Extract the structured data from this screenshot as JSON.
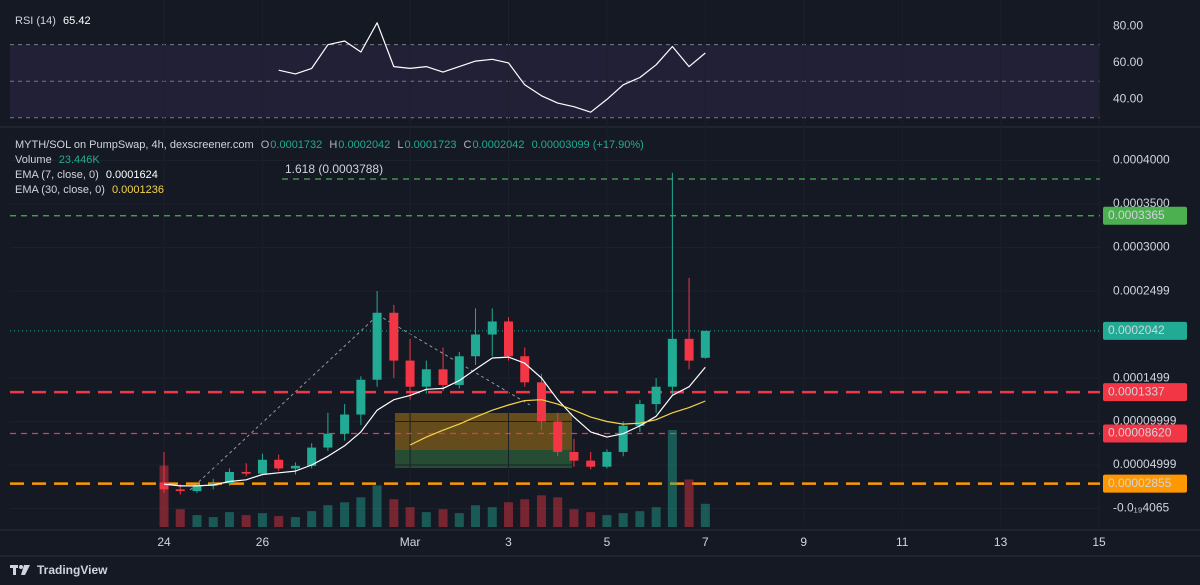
{
  "chart_data": {
    "type": "candlestick",
    "legend": {
      "title": "MYTH/SOL on PumpSwap, 4h, dexscreener.com",
      "keys": [
        "O",
        "H",
        "L",
        "C"
      ],
      "change": "0.00003099 (+17.90%)"
    },
    "footer": "TradingView",
    "xlim": [
      -3.13,
      19.02
    ],
    "xticks": [
      {
        "value": 0,
        "label": "24"
      },
      {
        "value": 2,
        "label": "26"
      },
      {
        "value": 5,
        "label": "Mar"
      },
      {
        "value": 7,
        "label": "3"
      },
      {
        "value": 9,
        "label": "5"
      },
      {
        "value": 11,
        "label": "7"
      },
      {
        "value": 13,
        "label": "9"
      },
      {
        "value": 15,
        "label": "11"
      },
      {
        "value": 17,
        "label": "13"
      },
      {
        "value": 19,
        "label": "15"
      }
    ],
    "ylim": [
      -2.13e-05,
      0.0004374
    ],
    "yticks": [
      {
        "value": 0.0004,
        "label": "0.0004000"
      },
      {
        "value": 0.00035,
        "label": "0.0003500"
      },
      {
        "value": 0.0003,
        "label": "0.0003000"
      },
      {
        "value": 0.0002499,
        "label": "0.0002499"
      },
      {
        "value": 0.0001499,
        "label": "0.0001499"
      },
      {
        "value": 9.999e-05,
        "label": "0.00009999"
      },
      {
        "value": 4.999e-05,
        "label": "0.00004999"
      },
      {
        "value": -4.065e-20,
        "label": "-0.0₁₉4065"
      }
    ],
    "up_color": "#22ab94",
    "down_color": "#f23645",
    "x": [
      0,
      0.33,
      0.67,
      1,
      1.33,
      1.67,
      2,
      2.33,
      2.67,
      3,
      3.33,
      3.67,
      4,
      4.33,
      4.67,
      5,
      5.33,
      5.67,
      6,
      6.33,
      6.67,
      7,
      7.33,
      7.67,
      8,
      8.33,
      8.67,
      9,
      9.33,
      9.67,
      10,
      10.33,
      10.67,
      11
    ],
    "candles": [
      [
        3e-05,
        6.5e-05,
        1.8e-05,
        2.2e-05
      ],
      [
        2.2e-05,
        2.8e-05,
        1.6e-05,
        2e-05
      ],
      [
        2e-05,
        2.9e-05,
        1.8e-05,
        2.6e-05
      ],
      [
        2.6e-05,
        3.4e-05,
        2.2e-05,
        2.9e-05
      ],
      [
        2.9e-05,
        4.6e-05,
        2.6e-05,
        4.2e-05
      ],
      [
        4.2e-05,
        5.2e-05,
        3.7e-05,
        4e-05
      ],
      [
        4e-05,
        6.3e-05,
        3.8e-05,
        5.6e-05
      ],
      [
        5.6e-05,
        6.2e-05,
        4.3e-05,
        4.6e-05
      ],
      [
        4.6e-05,
        5.3e-05,
        3.9e-05,
        4.9e-05
      ],
      [
        4.9e-05,
        7.5e-05,
        4.6e-05,
        7e-05
      ],
      [
        7e-05,
        0.00011,
        6.6e-05,
        8.6e-05
      ],
      [
        8.6e-05,
        0.00012,
        7.8e-05,
        0.000108
      ],
      [
        0.000108,
        0.000152,
        9.6e-05,
        0.000148
      ],
      [
        0.000148,
        0.00025,
        0.00014,
        0.000225
      ],
      [
        0.000225,
        0.000234,
        0.00015,
        0.00017
      ],
      [
        0.00017,
        0.000195,
        0.000125,
        0.00014
      ],
      [
        0.00014,
        0.00017,
        0.000132,
        0.00016
      ],
      [
        0.00016,
        0.000185,
        0.000135,
        0.000142
      ],
      [
        0.000142,
        0.00018,
        0.000138,
        0.000175
      ],
      [
        0.000175,
        0.00023,
        0.000165,
        0.0002
      ],
      [
        0.0002,
        0.00023,
        0.000175,
        0.000215
      ],
      [
        0.000215,
        0.00022,
        0.00017,
        0.000175
      ],
      [
        0.000175,
        0.000185,
        0.00014,
        0.000145
      ],
      [
        0.000145,
        0.000155,
        9e-05,
        0.0001
      ],
      [
        0.0001,
        0.00011,
        6e-05,
        6.5e-05
      ],
      [
        6.5e-05,
        8e-05,
        4.8e-05,
        5.5e-05
      ],
      [
        5.5e-05,
        6.5e-05,
        4.5e-05,
        4.8e-05
      ],
      [
        4.8e-05,
        6.8e-05,
        4.6e-05,
        6.5e-05
      ],
      [
        6.5e-05,
        0.0001,
        6e-05,
        9.5e-05
      ],
      [
        9.5e-05,
        0.000125,
        8.8e-05,
        0.00012
      ],
      [
        0.00012,
        0.00015,
        0.00011,
        0.00014
      ],
      [
        0.00014,
        0.000386,
        0.00013,
        0.000195
      ],
      [
        0.000195,
        0.000265,
        0.00016,
        0.00017
      ],
      [
        0.0001732,
        0.0002042,
        0.0001723,
        0.0002042
      ]
    ],
    "volume": {
      "name": "Volume",
      "label": "23.446K",
      "values": [
        62000,
        18000,
        12000,
        10000,
        15000,
        12000,
        14000,
        11000,
        10000,
        16000,
        22000,
        25000,
        30000,
        42000,
        28000,
        20000,
        15000,
        18000,
        14000,
        22000,
        20000,
        25000,
        28000,
        32000,
        30000,
        18000,
        15000,
        12000,
        14000,
        16000,
        20000,
        98000,
        48000,
        23446
      ]
    },
    "series": [
      {
        "name": "EMA (7, close, 0)",
        "color": "#ffffff",
        "values": [
          2.8e-05,
          2.6e-05,
          2.6e-05,
          2.7e-05,
          3.1e-05,
          3.3e-05,
          3.9e-05,
          4.1e-05,
          4.3e-05,
          5e-05,
          6e-05,
          7.2e-05,
          8.8e-05,
          0.000113,
          0.000125,
          0.00013,
          0.000137,
          0.000138,
          0.000147,
          0.00016,
          0.000173,
          0.000174,
          0.000167,
          0.00015,
          0.000125,
          0.000105,
          8.8e-05,
          8.2e-05,
          8.6e-05,
          9.5e-05,
          0.000106,
          0.00013,
          0.00014,
          0.0001624
        ]
      },
      {
        "name": "EMA (30, close, 0)",
        "color": "#f5d547",
        "values": [
          null,
          null,
          null,
          null,
          null,
          null,
          null,
          null,
          null,
          null,
          null,
          null,
          null,
          null,
          null,
          7.3e-05,
          8.2e-05,
          9e-05,
          9.7e-05,
          0.000105,
          0.000113,
          0.000119,
          0.000124,
          0.000125,
          0.00012,
          0.000113,
          0.000105,
          0.0001,
          9.7e-05,
          9.8e-05,
          0.000102,
          0.00011,
          0.000116,
          0.0001236
        ]
      }
    ],
    "rsi": {
      "name": "RSI (14)",
      "color": "#ffffff",
      "ylim": [
        26,
        89
      ],
      "yticks": [
        {
          "value": 80,
          "label": "80.00"
        },
        {
          "value": 60,
          "label": "60.00"
        },
        {
          "value": 40,
          "label": "40.00"
        }
      ],
      "levels": [
        70,
        50,
        30
      ],
      "values": [
        null,
        null,
        null,
        null,
        null,
        null,
        null,
        56,
        54,
        57,
        70,
        72,
        66,
        82,
        58,
        57,
        58,
        55,
        58,
        61,
        62,
        60,
        48,
        42,
        38,
        36,
        33,
        40,
        48,
        52,
        59,
        69,
        58,
        65.42
      ]
    },
    "price_lines": [
      {
        "value": 0.0003788,
        "label": "1.618 (0.0003788)",
        "color": "#4caf50",
        "text_color": "#4caf50",
        "style": "fib"
      },
      {
        "value": 0.0003365,
        "label": "0.0003365",
        "color": "#4caf50",
        "text_color": "#0b1a0c",
        "style": "dashed"
      },
      {
        "value": 0.0002042,
        "label": "0.0002042",
        "color": "#22ab94",
        "text_color": "#ffffff",
        "style": "dotted"
      },
      {
        "value": 0.0001337,
        "label": "0.0001337",
        "color": "#f23645",
        "text_color": "#ffffff",
        "style": "thick"
      },
      {
        "value": 8.62e-05,
        "label": "0.00008620",
        "color": "#f23645",
        "text_color": "#ffffff",
        "style": "dashed"
      },
      {
        "value": 2.855e-05,
        "label": "0.00002855",
        "color": "#ff9800",
        "text_color": "#1a1200",
        "style": "thick"
      }
    ]
  }
}
